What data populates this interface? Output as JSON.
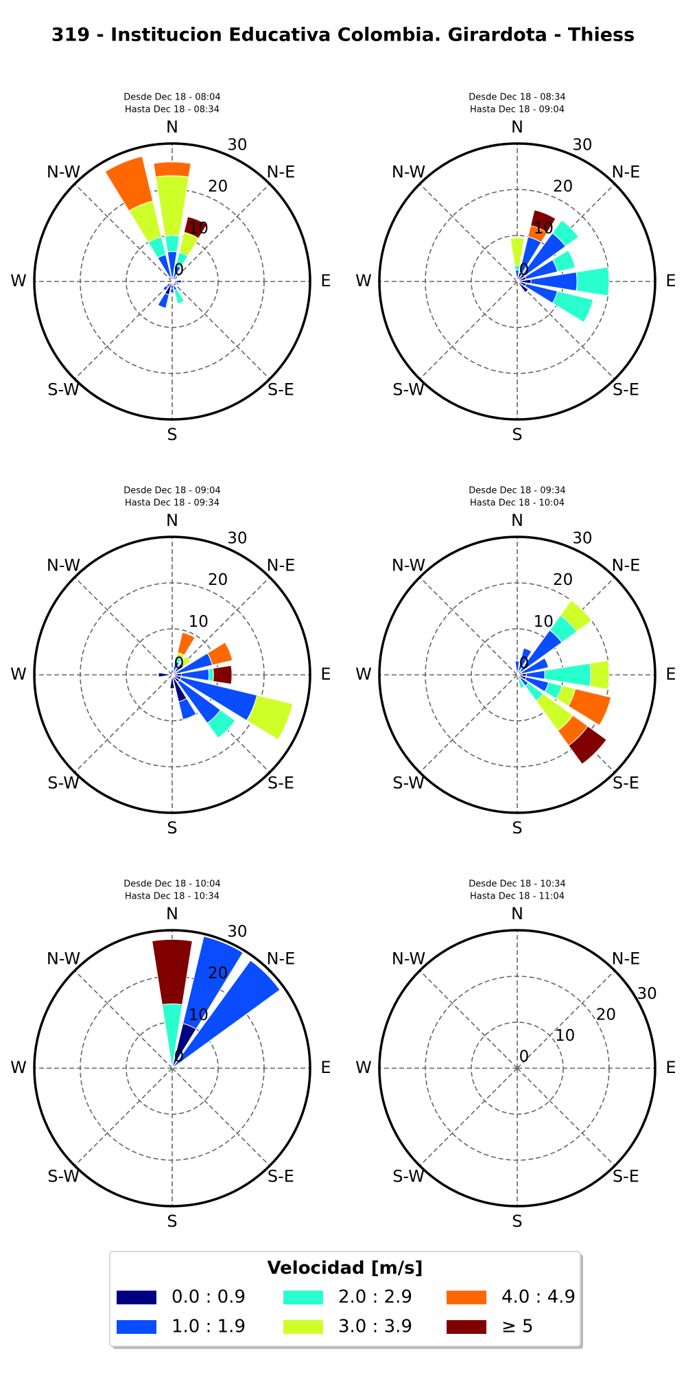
{
  "title": "319 - Institucion Educativa Colombia. Girardota - Thiess",
  "legend": {
    "title": "Velocidad [m/s]",
    "entries": [
      {
        "name": "0.0 : 0.9",
        "color": "#000080"
      },
      {
        "name": "1.0 : 1.9",
        "color": "#0a4cff"
      },
      {
        "name": "2.0 : 2.9",
        "color": "#29ffce"
      },
      {
        "name": "3.0 : 3.9",
        "color": "#ceff29"
      },
      {
        "name": "4.0 : 4.9",
        "color": "#ff6800"
      },
      {
        "name": "≥  5",
        "color": "#800000"
      }
    ]
  },
  "chart_data": [
    {
      "type": "windrose",
      "subtitle": [
        "Desde Dec 18 - 08:04",
        "Hasta Dec 18 - 08:34"
      ],
      "directions": [
        "N",
        "N-E",
        "E",
        "S-E",
        "S",
        "S-W",
        "W",
        "N-W"
      ],
      "rlim": [
        0,
        30
      ],
      "rticks": [
        0,
        10,
        20,
        30
      ],
      "rlabel_position": 25,
      "series": [
        {
          "values": [
            1,
            0.5,
            0.5,
            0.5,
            2,
            1,
            0.5,
            1,
            1.5,
            3,
            1.5,
            0,
            0,
            0,
            0,
            1
          ]
        },
        {
          "values": [
            5.5,
            3,
            1,
            0,
            0,
            0.5,
            0,
            1,
            1,
            3,
            1,
            0,
            0,
            0,
            0,
            5
          ]
        },
        {
          "values": [
            3.5,
            3,
            0,
            0,
            0,
            0,
            0,
            3,
            0,
            0,
            0,
            0,
            0,
            0,
            0,
            4
          ]
        },
        {
          "values": [
            13,
            4.5,
            0,
            0,
            0,
            0,
            0,
            0,
            0,
            0,
            0,
            0,
            0,
            0,
            0,
            8
          ]
        },
        {
          "values": [
            3,
            0,
            0,
            0,
            0,
            0,
            0,
            0,
            0,
            0,
            0,
            0,
            0,
            0,
            0,
            10
          ]
        },
        {
          "values": [
            0,
            3.5,
            0,
            0,
            0,
            0,
            0,
            0,
            0,
            0,
            0,
            0,
            0,
            0,
            0,
            0
          ]
        }
      ]
    },
    {
      "type": "windrose",
      "subtitle": [
        "Desde Dec 18 - 08:34",
        "Hasta Dec 18 - 09:04"
      ],
      "directions": [
        "N",
        "N-E",
        "E",
        "S-E",
        "S",
        "S-W",
        "W",
        "N-W"
      ],
      "rlim": [
        0,
        30
      ],
      "rticks": [
        0,
        10,
        20,
        30
      ],
      "rlabel_position": 25,
      "series": [
        {
          "values": [
            1,
            2,
            2,
            2,
            3,
            2,
            3,
            0,
            0,
            0,
            0,
            0,
            0,
            0,
            0,
            0.5
          ]
        },
        {
          "values": [
            1.5,
            8,
            11,
            7,
            10,
            7,
            0,
            0,
            0,
            0,
            0,
            0,
            0,
            0,
            0,
            0
          ]
        },
        {
          "values": [
            1,
            0,
            3.5,
            4,
            7,
            8,
            0,
            0,
            0,
            0,
            0,
            0,
            0,
            0,
            0,
            0
          ]
        },
        {
          "values": [
            6,
            0,
            0,
            0,
            0,
            0,
            0,
            0,
            0,
            0,
            0,
            0,
            0,
            0,
            0,
            0
          ]
        },
        {
          "values": [
            0,
            2.5,
            0,
            0,
            0,
            0,
            0,
            0,
            0,
            0,
            0,
            0,
            0,
            0,
            0,
            0
          ]
        },
        {
          "values": [
            0,
            3.5,
            0,
            0,
            0,
            0,
            0,
            0,
            0,
            0,
            0,
            0,
            0,
            0,
            0,
            0
          ]
        }
      ]
    },
    {
      "type": "windrose",
      "subtitle": [
        "Desde Dec 18 - 09:04",
        "Hasta Dec 18 - 09:34"
      ],
      "directions": [
        "N",
        "N-E",
        "E",
        "S-E",
        "S",
        "S-W",
        "W",
        "N-W"
      ],
      "rlim": [
        0,
        30
      ],
      "rticks": [
        0,
        10,
        20,
        30
      ],
      "rlabel_position": 25,
      "series": [
        {
          "values": [
            0,
            1,
            1,
            1,
            2,
            2,
            2,
            6,
            3,
            0,
            0,
            0,
            3,
            0,
            0,
            0
          ]
        },
        {
          "values": [
            0,
            2,
            2,
            8,
            6,
            17,
            11,
            4,
            0,
            0,
            0,
            0,
            0,
            0,
            0,
            0
          ]
        },
        {
          "values": [
            0,
            1,
            0,
            0,
            1,
            0,
            4,
            0,
            0,
            0,
            0,
            0,
            0,
            0,
            0,
            0
          ]
        },
        {
          "values": [
            0,
            1,
            2,
            0,
            0,
            8,
            0,
            0,
            0,
            0,
            0,
            0,
            0,
            0,
            0,
            0
          ]
        },
        {
          "values": [
            0,
            4.5,
            0,
            4.5,
            0,
            0,
            0,
            0,
            0,
            0,
            0,
            0,
            0,
            0,
            0,
            0
          ]
        },
        {
          "values": [
            0,
            0,
            0,
            0,
            4,
            0,
            0,
            0,
            0,
            0,
            0,
            0,
            0,
            0,
            0,
            0
          ]
        }
      ]
    },
    {
      "type": "windrose",
      "subtitle": [
        "Desde Dec 18 - 09:34",
        "Hasta Dec 18 - 10:04"
      ],
      "directions": [
        "N",
        "N-E",
        "E",
        "S-E",
        "S",
        "S-W",
        "W",
        "N-W"
      ],
      "rlim": [
        0,
        30
      ],
      "rticks": [
        0,
        10,
        20,
        30
      ],
      "rlabel_position": 25,
      "series": [
        {
          "values": [
            0,
            1,
            1,
            1,
            2,
            2,
            1,
            1,
            0,
            0,
            0,
            0,
            0,
            0,
            0,
            0
          ]
        },
        {
          "values": [
            3,
            5,
            11,
            6,
            4,
            5,
            2,
            0,
            0,
            0,
            0,
            0,
            0,
            0,
            0,
            0
          ]
        },
        {
          "values": [
            0,
            0,
            4,
            0,
            10,
            3,
            4,
            2,
            0,
            0,
            0,
            0,
            0,
            0,
            0,
            0
          ]
        },
        {
          "values": [
            0,
            0,
            4,
            0,
            4,
            3,
            8,
            0,
            0,
            0,
            0,
            0,
            0,
            0,
            0,
            0
          ]
        },
        {
          "values": [
            0,
            0,
            0,
            0,
            0,
            8,
            4,
            0,
            0,
            0,
            0,
            0,
            0,
            0,
            0,
            0
          ]
        },
        {
          "values": [
            0,
            0,
            0,
            0,
            0,
            0,
            5,
            0,
            0,
            0,
            0,
            0,
            0,
            0,
            0,
            0
          ]
        }
      ]
    },
    {
      "type": "windrose",
      "subtitle": [
        "Desde Dec 18 - 10:04",
        "Hasta Dec 18 - 10:34"
      ],
      "directions": [
        "N",
        "N-E",
        "E",
        "S-E",
        "S",
        "S-W",
        "W",
        "N-W"
      ],
      "rlim": [
        0,
        30
      ],
      "rticks": [
        0,
        10,
        20,
        30
      ],
      "rlabel_position": 25,
      "series": [
        {
          "values": [
            0,
            10,
            0,
            0,
            0,
            0,
            0,
            0,
            0,
            0,
            0,
            0,
            0,
            0,
            0,
            0
          ]
        },
        {
          "values": [
            0,
            19.5,
            29,
            0,
            0,
            0,
            0,
            0,
            0,
            0,
            0,
            0,
            0,
            0,
            0,
            0
          ]
        },
        {
          "values": [
            14,
            0,
            0,
            0,
            0,
            0,
            0,
            0,
            0,
            0,
            0,
            0,
            0,
            0,
            0,
            0
          ]
        },
        {
          "values": [
            0,
            0,
            0,
            0,
            0,
            0,
            0,
            0,
            0,
            0,
            0,
            0,
            0,
            0,
            0,
            0
          ]
        },
        {
          "values": [
            0,
            0,
            0,
            0,
            0,
            0,
            0,
            0,
            0,
            0,
            0,
            0,
            0,
            0,
            0,
            0
          ]
        },
        {
          "values": [
            14,
            0,
            0,
            0,
            0,
            0,
            0,
            0,
            0,
            0,
            0,
            0,
            0,
            0,
            0,
            0
          ]
        }
      ]
    },
    {
      "type": "windrose",
      "subtitle": [
        "Desde Dec 18 - 10:34",
        "Hasta Dec 18 - 11:04"
      ],
      "directions": [
        "N",
        "N-E",
        "E",
        "S-E",
        "S",
        "S-W",
        "W",
        "N-W"
      ],
      "rlim": [
        0,
        30
      ],
      "rticks": [
        0,
        10,
        20,
        30
      ],
      "rlabel_position": 63,
      "series": [
        {
          "values": [
            0,
            0,
            0,
            0,
            0,
            0,
            0,
            0,
            0,
            0,
            0,
            0,
            0,
            0,
            0,
            0
          ]
        },
        {
          "values": [
            0,
            0,
            0,
            0,
            0,
            0,
            0,
            0,
            0,
            0,
            0,
            0,
            0,
            0,
            0,
            0
          ]
        },
        {
          "values": [
            0,
            0,
            0,
            0,
            0,
            0,
            0,
            0,
            0,
            0,
            0,
            0,
            0,
            0,
            0,
            0
          ]
        },
        {
          "values": [
            0,
            0,
            0,
            0,
            0,
            0,
            0,
            0,
            0,
            0,
            0,
            0,
            0,
            0,
            0,
            0
          ]
        },
        {
          "values": [
            0,
            0,
            0,
            0,
            0,
            0,
            0,
            0,
            0,
            0,
            0,
            0,
            0,
            0,
            0,
            0
          ]
        },
        {
          "values": [
            0,
            0,
            0,
            0,
            0,
            0,
            0,
            0,
            0,
            0,
            0,
            0,
            0,
            0,
            0,
            0
          ]
        }
      ]
    }
  ]
}
